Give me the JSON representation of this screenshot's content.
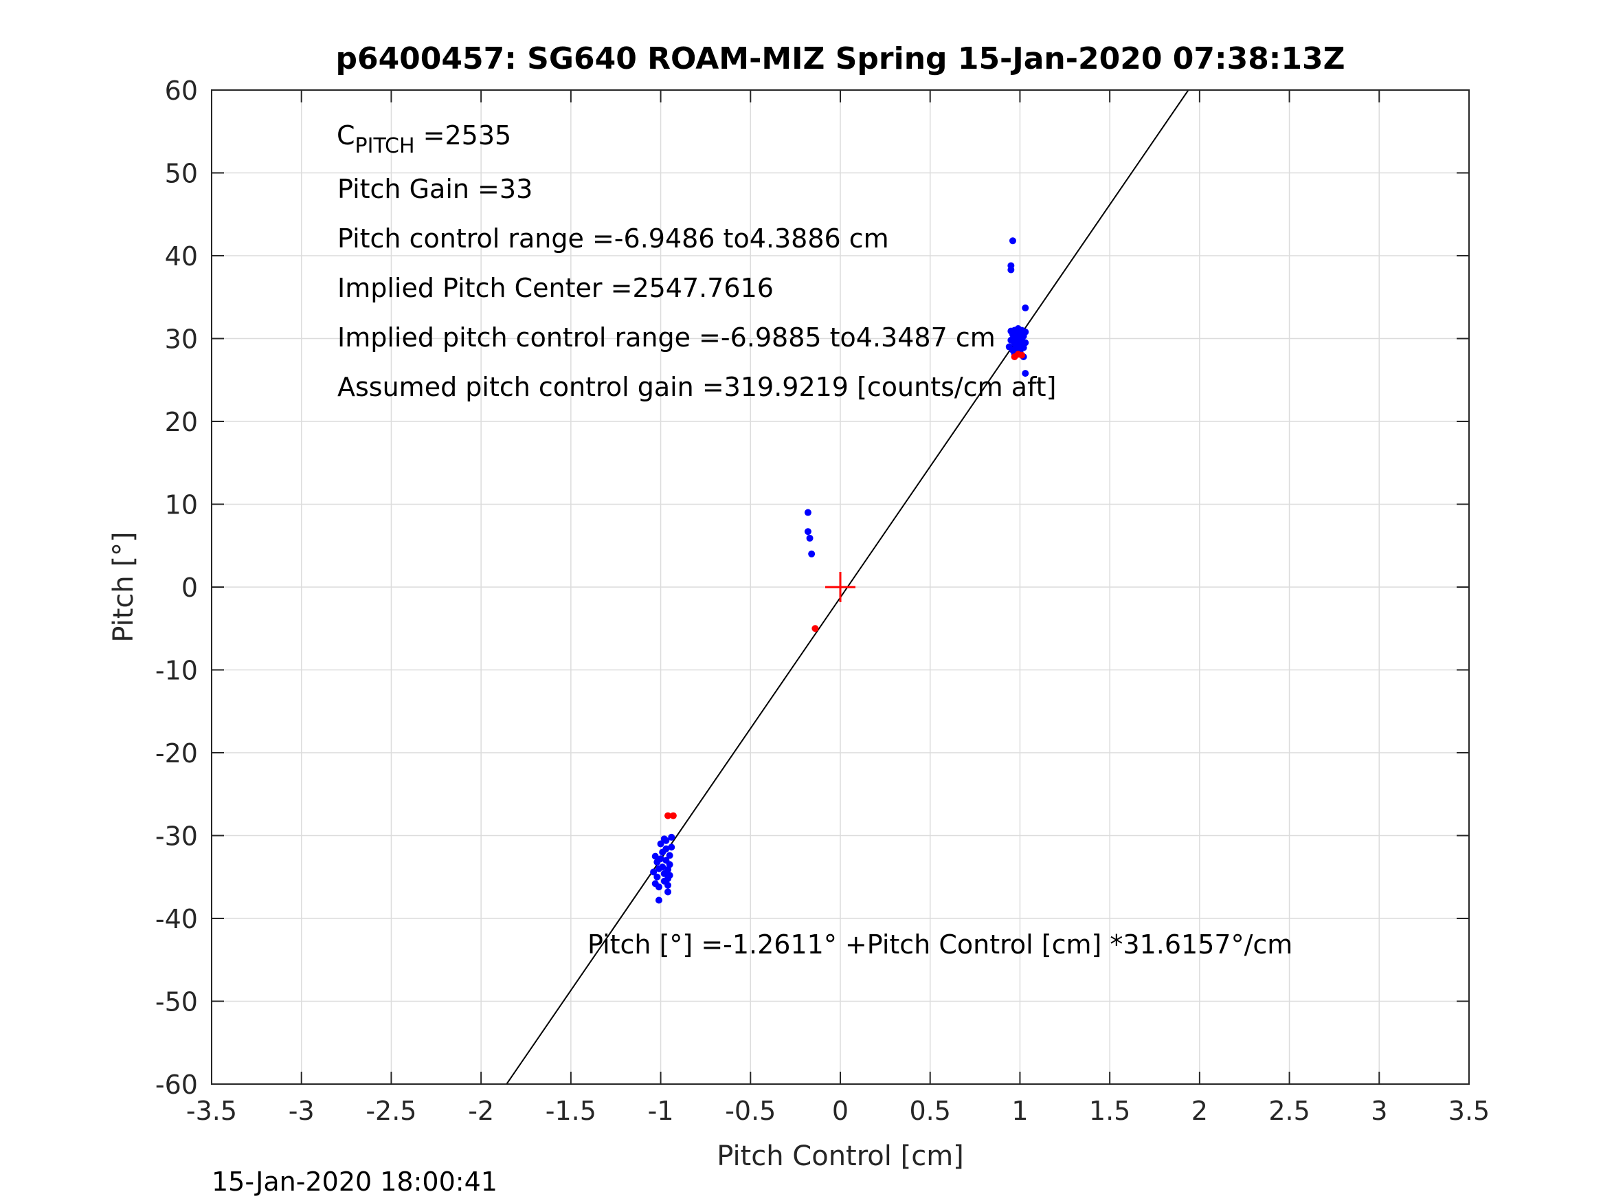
{
  "chart_data": {
    "type": "scatter",
    "title": "p6400457: SG640 ROAM-MIZ Spring 15-Jan-2020 07:38:13Z",
    "xlabel": "Pitch Control [cm]",
    "ylabel": "Pitch [°]",
    "xlim": [
      -3.5,
      3.5
    ],
    "ylim": [
      -60,
      60
    ],
    "grid": true,
    "x_ticks": [
      -3.5,
      -3,
      -2.5,
      -2,
      -1.5,
      -1,
      -0.5,
      0,
      0.5,
      1,
      1.5,
      2,
      2.5,
      3,
      3.5
    ],
    "x_tick_labels": [
      "-3.5",
      "-3",
      "-2.5",
      "-2",
      "-1.5",
      "-1",
      "-0.5",
      "0",
      "0.5",
      "1",
      "1.5",
      "2",
      "2.5",
      "3",
      "3.5"
    ],
    "y_ticks": [
      -60,
      -50,
      -40,
      -30,
      -20,
      -10,
      0,
      10,
      20,
      30,
      40,
      50,
      60
    ],
    "y_tick_labels": [
      "-60",
      "-50",
      "-40",
      "-30",
      "-20",
      "-10",
      "0",
      "10",
      "20",
      "30",
      "40",
      "50",
      "60"
    ],
    "annotations": {
      "c_pitch_main": "C",
      "c_pitch_sub": "PITCH",
      "c_pitch_value": " =2535",
      "pitch_gain": "Pitch Gain =33",
      "pitch_control_range": "Pitch control range =-6.9486 to4.3886 cm",
      "implied_pitch_center": "Implied Pitch Center =2547.7616",
      "implied_control_range": "Implied pitch control range =-6.9885 to4.3487 cm",
      "assumed_gain": "Assumed pitch control gain =319.9219 [counts/cm aft]",
      "fit_equation": "Pitch [°] =-1.2611° +Pitch Control [cm] *31.6157°/cm"
    },
    "fit_line": {
      "intercept": -1.2611,
      "slope": 31.6157,
      "color": "#000000"
    },
    "center_marker": {
      "x": 0,
      "y": 0,
      "color": "#ff0000"
    },
    "series": [
      {
        "color": "#0000ff",
        "points": [
          [
            -1.03,
            -32.5
          ],
          [
            -1.02,
            -33.2
          ],
          [
            -1.01,
            -34.0
          ],
          [
            -1.02,
            -35.0
          ],
          [
            -1.01,
            -36.2
          ],
          [
            -1.01,
            -37.8
          ],
          [
            -1.0,
            -31.0
          ],
          [
            -0.99,
            -32.0
          ],
          [
            -0.99,
            -33.8
          ],
          [
            -0.98,
            -34.6
          ],
          [
            -0.98,
            -35.5
          ],
          [
            -0.97,
            -30.6
          ],
          [
            -0.97,
            -31.6
          ],
          [
            -0.97,
            -33.0
          ],
          [
            -0.96,
            -34.1
          ],
          [
            -0.96,
            -35.2
          ],
          [
            -0.96,
            -36.0
          ],
          [
            -0.96,
            -36.8
          ],
          [
            -0.95,
            -32.4
          ],
          [
            -0.95,
            -33.5
          ],
          [
            -0.94,
            -30.2
          ],
          [
            -0.94,
            -31.4
          ],
          [
            -1.04,
            -34.4
          ],
          [
            -1.0,
            -32.8
          ],
          [
            -0.98,
            -30.4
          ],
          [
            -0.95,
            -34.8
          ],
          [
            -1.03,
            -35.8
          ],
          [
            -0.18,
            9.0
          ],
          [
            -0.18,
            6.7
          ],
          [
            -0.17,
            5.9
          ],
          [
            -0.16,
            4.0
          ],
          [
            0.95,
            38.8
          ],
          [
            0.95,
            38.3
          ],
          [
            0.96,
            41.8
          ],
          [
            1.03,
            33.7
          ],
          [
            1.03,
            25.8
          ],
          [
            0.94,
            29.0
          ],
          [
            0.95,
            29.8
          ],
          [
            0.96,
            30.5
          ],
          [
            0.96,
            28.6
          ],
          [
            0.97,
            31.0
          ],
          [
            0.97,
            29.4
          ],
          [
            0.98,
            30.2
          ],
          [
            0.98,
            28.8
          ],
          [
            0.99,
            31.2
          ],
          [
            0.99,
            29.6
          ],
          [
            1.0,
            30.6
          ],
          [
            1.0,
            28.4
          ],
          [
            1.01,
            29.9
          ],
          [
            1.01,
            31.0
          ],
          [
            1.02,
            30.3
          ],
          [
            1.02,
            28.9
          ],
          [
            1.03,
            29.5
          ],
          [
            1.03,
            30.8
          ],
          [
            0.95,
            30.9
          ],
          [
            0.97,
            28.2
          ],
          [
            1.0,
            29.2
          ],
          [
            1.02,
            27.8
          ],
          [
            0.98,
            30.9
          ],
          [
            0.96,
            29.9
          ]
        ]
      },
      {
        "color": "#ff0000",
        "points": [
          [
            -0.14,
            -5.0
          ],
          [
            -0.96,
            -27.6
          ],
          [
            -0.93,
            -27.6
          ],
          [
            0.97,
            27.8
          ],
          [
            0.99,
            28.1
          ],
          [
            1.01,
            28.0
          ]
        ]
      }
    ]
  },
  "footer": {
    "timestamp": "15-Jan-2020 18:00:41"
  }
}
